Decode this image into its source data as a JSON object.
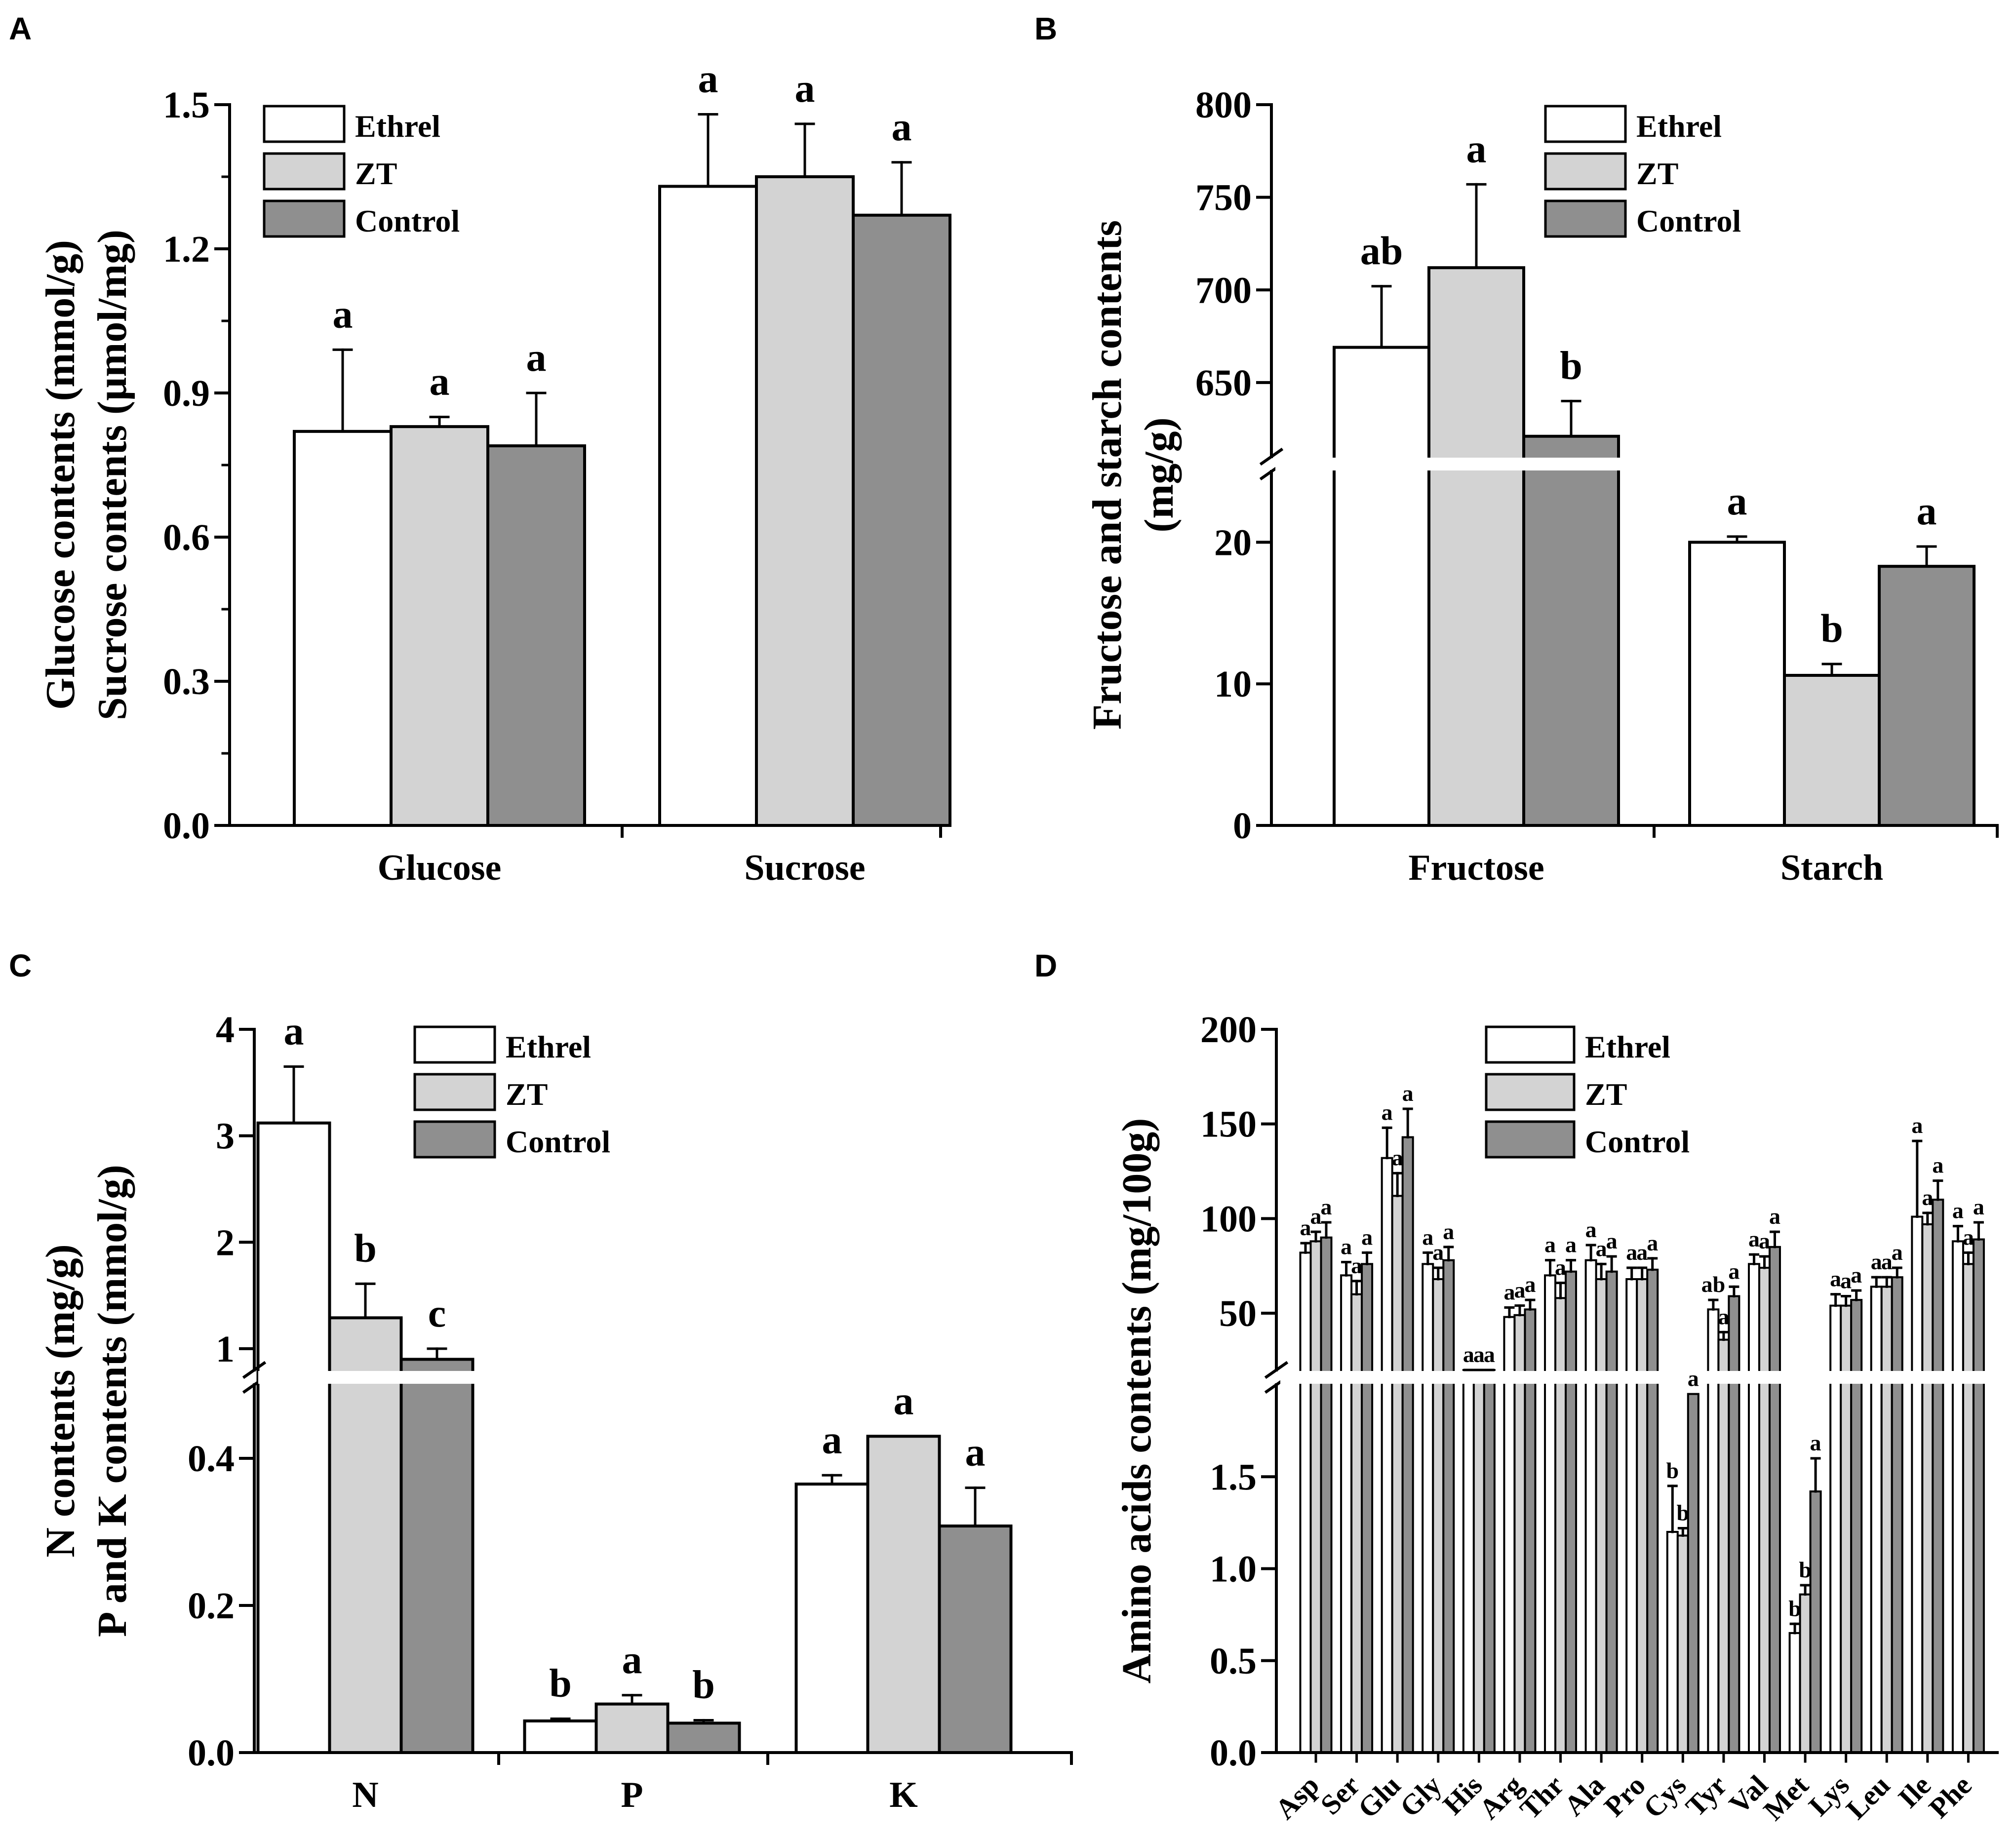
{
  "colors": {
    "Ethrel": "#ffffff",
    "ZT": "#d3d3d3",
    "Control": "#8f8f8f",
    "axis": "#000000"
  },
  "chart_data": [
    {
      "panel": "A",
      "type": "bar",
      "ylabel_lines": [
        "Glucose contents (mmol/g)",
        "Sucrose contents (µmol/mg)"
      ],
      "xlabel": "",
      "ylim": [
        0,
        1.5
      ],
      "yticks": [
        "0.0",
        "0.3",
        "0.6",
        "0.9",
        "1.2",
        "1.5"
      ],
      "categories": [
        "Glucose",
        "Sucrose"
      ],
      "legend": [
        "Ethrel",
        "ZT",
        "Control"
      ],
      "series": [
        {
          "name": "Ethrel",
          "values": [
            0.82,
            1.33
          ],
          "errors": [
            0.17,
            0.15
          ],
          "letters": [
            "a",
            "a"
          ]
        },
        {
          "name": "ZT",
          "values": [
            0.83,
            1.35
          ],
          "errors": [
            0.02,
            0.11
          ],
          "letters": [
            "a",
            "a"
          ]
        },
        {
          "name": "Control",
          "values": [
            0.79,
            1.27
          ],
          "errors": [
            0.11,
            0.11
          ],
          "letters": [
            "a",
            "a"
          ]
        }
      ]
    },
    {
      "panel": "B",
      "type": "bar",
      "ylabel_lines": [
        "Fructose and starch contents",
        "(mg/g)"
      ],
      "xlabel": "",
      "broken_axis": {
        "lower": [
          0,
          25
        ],
        "upper": [
          610,
          800
        ]
      },
      "yticks_lower": [
        "0",
        "10",
        "20"
      ],
      "yticks_upper": [
        "650",
        "700",
        "750",
        "800"
      ],
      "categories": [
        "Fructose",
        "Starch"
      ],
      "legend": [
        "Ethrel",
        "ZT",
        "Control"
      ],
      "series": [
        {
          "name": "Ethrel",
          "values": [
            669,
            20.0
          ],
          "errors": [
            33,
            0.4
          ],
          "letters": [
            "ab",
            "a"
          ]
        },
        {
          "name": "ZT",
          "values": [
            712,
            10.6
          ],
          "errors": [
            45,
            0.8
          ],
          "letters": [
            "a",
            "b"
          ]
        },
        {
          "name": "Control",
          "values": [
            621,
            18.3
          ],
          "errors": [
            19,
            1.4
          ],
          "letters": [
            "b",
            "a"
          ]
        }
      ]
    },
    {
      "panel": "C",
      "type": "bar",
      "ylabel_lines": [
        "N contents (mg/g)",
        "P and K contents (mmol/g)"
      ],
      "xlabel": "",
      "broken_axis": {
        "lower": [
          0,
          0.5
        ],
        "upper": [
          0.8,
          4
        ]
      },
      "yticks_lower": [
        "0.0",
        "0.2",
        "0.4"
      ],
      "yticks_upper": [
        "1",
        "2",
        "3",
        "4"
      ],
      "categories": [
        "N",
        "P",
        "K"
      ],
      "legend": [
        "Ethrel",
        "ZT",
        "Control"
      ],
      "series": [
        {
          "name": "Ethrel",
          "values": [
            3.12,
            0.043,
            0.365
          ],
          "errors": [
            0.53,
            0.003,
            0.012
          ],
          "letters": [
            "a",
            "b",
            "a"
          ]
        },
        {
          "name": "ZT",
          "values": [
            1.29,
            0.066,
            0.43
          ],
          "errors": [
            0.32,
            0.012,
            0.0
          ],
          "letters": [
            "b",
            "a",
            "a"
          ]
        },
        {
          "name": "Control",
          "values": [
            0.9,
            0.04,
            0.308
          ],
          "errors": [
            0.1,
            0.004,
            0.052
          ],
          "letters": [
            "c",
            "b",
            "a"
          ]
        }
      ]
    },
    {
      "panel": "D",
      "type": "bar",
      "ylabel_lines": [
        "Amino acids contents (mg/100g)"
      ],
      "xlabel": "",
      "broken_axis": {
        "lower": [
          0,
          2.0
        ],
        "upper": [
          20,
          200
        ]
      },
      "yticks_lower": [
        "0.0",
        "0.5",
        "1.0",
        "1.5"
      ],
      "yticks_upper": [
        "50",
        "100",
        "150",
        "200"
      ],
      "categories": [
        "Asp",
        "Ser",
        "Glu",
        "Gly",
        "His",
        "Arg",
        "Thr",
        "Ala",
        "Pro",
        "Cys",
        "Tyr",
        "Val",
        "Met",
        "Lys",
        "Leu",
        "Ile",
        "Phe"
      ],
      "scale_per_category": [
        "upper",
        "upper",
        "upper",
        "upper",
        "upper",
        "upper",
        "upper",
        "upper",
        "upper",
        "lower",
        "upper",
        "upper",
        "lower",
        "upper",
        "upper",
        "upper",
        "upper"
      ],
      "legend": [
        "Ethrel",
        "ZT",
        "Control"
      ],
      "series": [
        {
          "name": "Ethrel",
          "values": [
            82,
            70,
            132,
            76,
            14,
            48,
            70,
            78,
            68,
            1.2,
            52,
            76,
            0.65,
            54,
            64,
            101,
            88
          ],
          "errors": [
            5,
            7,
            16,
            6,
            2,
            5,
            8,
            8,
            6,
            0.25,
            5,
            5,
            0.05,
            6,
            5,
            40,
            8
          ],
          "letters": [
            "a",
            "a",
            "a",
            "a",
            "a",
            "a",
            "a",
            "a",
            "a",
            "b",
            "ab",
            "a",
            "b",
            "a",
            "a",
            "a",
            "a"
          ]
        },
        {
          "name": "ZT",
          "values": [
            88,
            60,
            112,
            68,
            15,
            49,
            58,
            68,
            68,
            1.18,
            36,
            74,
            0.86,
            54,
            64,
            97,
            76
          ],
          "errors": [
            5,
            7,
            12,
            6,
            2,
            5,
            8,
            8,
            6,
            0.04,
            4,
            6,
            0.05,
            5,
            5,
            6,
            6
          ],
          "letters": [
            "a",
            "a",
            "a",
            "a",
            "a",
            "a",
            "a",
            "a",
            "a",
            "b",
            "a",
            "a",
            "b",
            "a",
            "a",
            "a",
            "a"
          ]
        },
        {
          "name": "Control",
          "values": [
            90,
            76,
            143,
            78,
            16,
            52,
            72,
            72,
            73,
            1.95,
            59,
            85,
            1.42,
            57,
            69,
            110,
            89
          ],
          "errors": [
            8,
            6,
            15,
            7,
            2,
            5,
            6,
            8,
            6,
            0.0,
            5,
            8,
            0.18,
            5,
            5,
            10,
            9
          ],
          "letters": [
            "a",
            "a",
            "a",
            "a",
            "a",
            "a",
            "a",
            "a",
            "a",
            "a",
            "a",
            "a",
            "a",
            "a",
            "a",
            "a",
            "a"
          ]
        }
      ]
    }
  ]
}
